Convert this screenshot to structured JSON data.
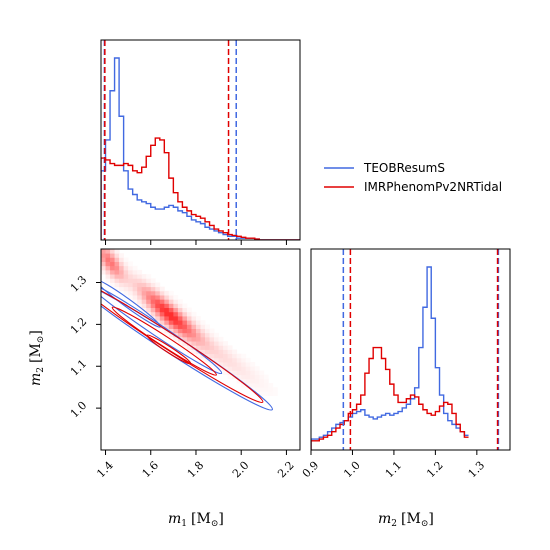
{
  "chart_data": {
    "type": "corner",
    "colors": {
      "teob": "#4169e1",
      "imr": "#e00000"
    },
    "legend": {
      "placement": "upper-right",
      "entries": [
        "TEOBResumS",
        "IMRPhenomPv2NRTidal"
      ]
    },
    "axes": {
      "m1": {
        "label_var": "m",
        "label_sub": "1",
        "label_unit": "[M",
        "label_close": "]",
        "range": [
          1.38,
          2.26
        ],
        "ticks": [
          "1.4",
          "1.6",
          "1.8",
          "2.0",
          "2.2"
        ],
        "tick_values": [
          1.4,
          1.6,
          1.8,
          2.0,
          2.2
        ]
      },
      "m2": {
        "label_var": "m",
        "label_sub": "2",
        "label_unit": "[M",
        "label_close": "]",
        "range": [
          0.9,
          1.38
        ],
        "ticks": [
          "0.9",
          "1.0",
          "1.1",
          "1.2",
          "1.3"
        ],
        "tick_values": [
          0.9,
          1.0,
          1.1,
          1.2,
          1.3
        ]
      },
      "m2_joint": {
        "range": [
          0.9,
          1.38
        ],
        "ticks": [
          "1.0",
          "1.1",
          "1.2",
          "1.3"
        ],
        "tick_values": [
          1.0,
          1.1,
          1.2,
          1.3
        ]
      }
    },
    "hist_m1": {
      "bin_edges_start": 1.38,
      "bin_width": 0.02,
      "series": [
        {
          "name": "TEOBResumS",
          "values": [
            0.38,
            0.55,
            0.82,
            1.0,
            0.68,
            0.38,
            0.28,
            0.25,
            0.22,
            0.21,
            0.2,
            0.18,
            0.17,
            0.17,
            0.18,
            0.19,
            0.18,
            0.16,
            0.15,
            0.13,
            0.11,
            0.1,
            0.09,
            0.07,
            0.06,
            0.05,
            0.04,
            0.03,
            0.02,
            0.02,
            0.01,
            0.01,
            0.01,
            0.01,
            0.005,
            0.0,
            0.0,
            0.0,
            0.0,
            0.0,
            0.0,
            0.0,
            0.0,
            0.0
          ]
        },
        {
          "name": "IMRPhenomPv2NRTidal",
          "values": [
            0.45,
            0.44,
            0.42,
            0.41,
            0.41,
            0.42,
            0.41,
            0.38,
            0.37,
            0.4,
            0.46,
            0.52,
            0.56,
            0.55,
            0.48,
            0.34,
            0.26,
            0.21,
            0.18,
            0.16,
            0.14,
            0.13,
            0.12,
            0.1,
            0.08,
            0.06,
            0.05,
            0.04,
            0.03,
            0.025,
            0.02,
            0.015,
            0.01,
            0.01,
            0.005,
            0.0,
            0.0,
            0.0,
            0.0,
            0.0,
            0.0,
            0.0,
            0.0,
            0.0
          ]
        }
      ],
      "quantiles": {
        "TEOBResumS": [
          1.395,
          1.978
        ],
        "IMRPhenomPv2NRTidal": [
          1.397,
          1.944
        ]
      }
    },
    "hist_m2": {
      "bin_edges_start": 0.9,
      "bin_width": 0.01,
      "series": [
        {
          "name": "TEOBResumS",
          "values": [
            0.06,
            0.06,
            0.07,
            0.08,
            0.1,
            0.12,
            0.14,
            0.15,
            0.16,
            0.18,
            0.2,
            0.21,
            0.22,
            0.19,
            0.18,
            0.17,
            0.18,
            0.19,
            0.2,
            0.19,
            0.2,
            0.21,
            0.23,
            0.25,
            0.28,
            0.34,
            0.56,
            0.78,
            1.0,
            0.72,
            0.45,
            0.3,
            0.2,
            0.16,
            0.14,
            0.12,
            0.1,
            0.08
          ]
        },
        {
          "name": "IMRPhenomPv2NRTidal",
          "values": [
            0.05,
            0.05,
            0.06,
            0.07,
            0.08,
            0.1,
            0.12,
            0.14,
            0.16,
            0.2,
            0.22,
            0.25,
            0.3,
            0.42,
            0.5,
            0.56,
            0.56,
            0.5,
            0.44,
            0.36,
            0.3,
            0.26,
            0.26,
            0.28,
            0.3,
            0.29,
            0.25,
            0.22,
            0.2,
            0.19,
            0.21,
            0.24,
            0.26,
            0.25,
            0.2,
            0.14,
            0.1,
            0.07
          ]
        }
      ],
      "quantiles": {
        "TEOBResumS": [
          0.978,
          1.352
        ],
        "IMRPhenomPv2NRTidal": [
          0.995,
          1.35
        ]
      }
    }
  }
}
